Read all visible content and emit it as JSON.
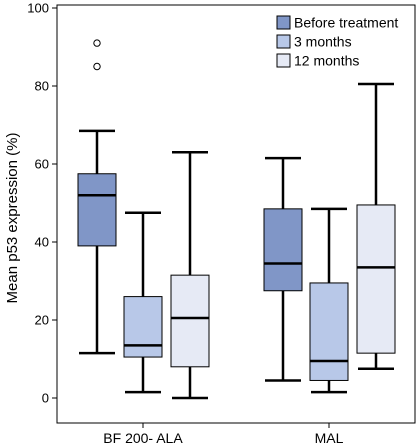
{
  "chart_data": {
    "type": "boxplot",
    "ylabel": "Mean p53 expression (%)",
    "xlabel": "",
    "ylim": [
      0,
      100
    ],
    "yticks": [
      0,
      20,
      40,
      60,
      80,
      100
    ],
    "grid": false,
    "legend_position": "top-right",
    "categories": [
      "BF 200- ALA",
      "MAL"
    ],
    "series": [
      {
        "name": "Before treatment",
        "color": "#8096c7",
        "boxes": [
          {
            "min": 11.5,
            "q1": 39,
            "median": 52,
            "q3": 57.5,
            "max": 68.5,
            "outliers": [
              85,
              91
            ]
          },
          {
            "min": 4.5,
            "q1": 27.5,
            "median": 34.5,
            "q3": 48.5,
            "max": 61.5,
            "outliers": []
          }
        ]
      },
      {
        "name": "3 months",
        "color": "#b8c8e8",
        "boxes": [
          {
            "min": 1.5,
            "q1": 10.5,
            "median": 13.5,
            "q3": 26,
            "max": 47.5,
            "outliers": []
          },
          {
            "min": 1.5,
            "q1": 4.5,
            "median": 9.5,
            "q3": 29.5,
            "max": 48.5,
            "outliers": []
          }
        ]
      },
      {
        "name": "12 months",
        "color": "#e6eaf5",
        "boxes": [
          {
            "min": 0,
            "q1": 8,
            "median": 20.5,
            "q3": 31.5,
            "max": 63,
            "outliers": []
          },
          {
            "min": 7.5,
            "q1": 11.5,
            "median": 33.5,
            "q3": 49.5,
            "max": 80.5,
            "outliers": []
          }
        ]
      }
    ]
  }
}
